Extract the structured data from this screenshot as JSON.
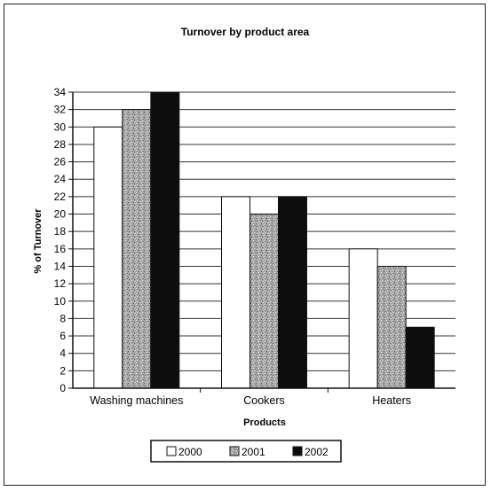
{
  "chart_data": {
    "type": "bar",
    "title": "Turnover by product area",
    "xlabel": "Products",
    "ylabel": "% of Turnover",
    "categories": [
      "Washing machines",
      "Cookers",
      "Heaters"
    ],
    "series": [
      {
        "name": "2000",
        "values": [
          30,
          22,
          16
        ],
        "color": "#ffffff",
        "pattern": "white"
      },
      {
        "name": "2001",
        "values": [
          32,
          20,
          14
        ],
        "color": "#9a9a9a",
        "pattern": "speckled-grey"
      },
      {
        "name": "2002",
        "values": [
          34,
          22,
          7
        ],
        "color": "#0d0d0d",
        "pattern": "black"
      }
    ],
    "ylim": [
      0,
      34
    ],
    "yticks": [
      0,
      2,
      4,
      6,
      8,
      10,
      12,
      14,
      16,
      18,
      20,
      22,
      24,
      26,
      28,
      30,
      32,
      34
    ],
    "grid": true,
    "legend_position": "bottom"
  }
}
